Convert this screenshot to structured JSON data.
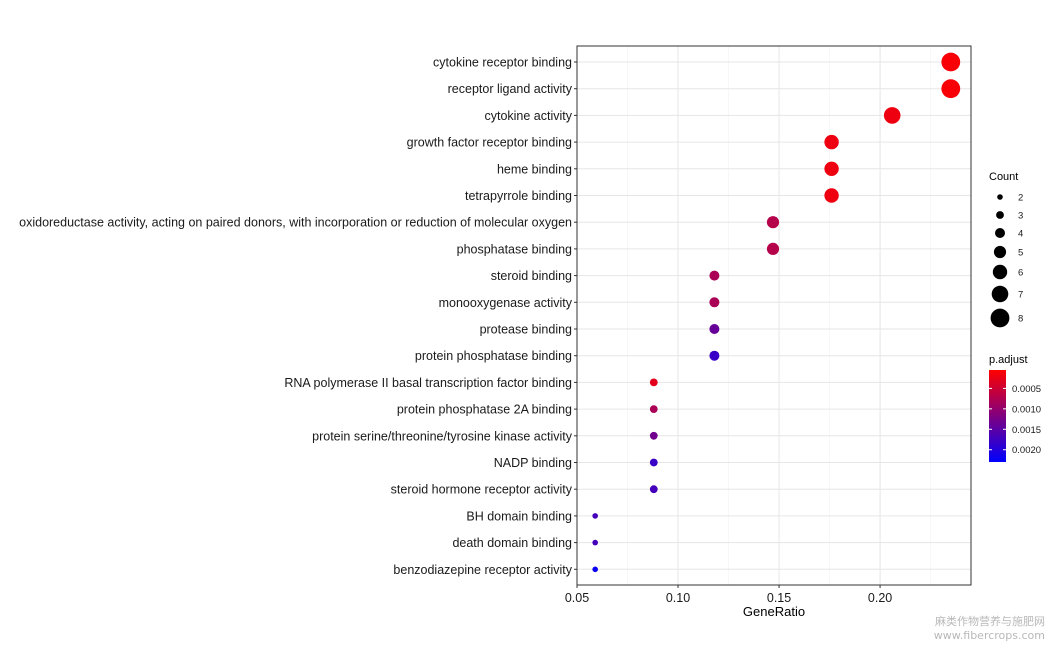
{
  "chart_data": {
    "type": "scatter",
    "title": "",
    "xlabel": "GeneRatio",
    "ylabel": "",
    "xlim": [
      0.05,
      0.245
    ],
    "xticks": [
      "0.05",
      "0.10",
      "0.15",
      "0.20"
    ],
    "grid": true,
    "legend_position": "right",
    "categories": [
      "cytokine receptor binding",
      "receptor ligand activity",
      "cytokine activity",
      "growth factor receptor binding",
      "heme binding",
      "tetrapyrrole binding",
      "oxidoreductase activity, acting on paired donors, with incorporation or reduction of molecular oxygen",
      "phosphatase binding",
      "steroid binding",
      "monooxygenase activity",
      "protease binding",
      "protein phosphatase binding",
      "RNA polymerase II basal transcription factor binding",
      "protein phosphatase 2A binding",
      "protein serine/threonine/tyrosine kinase activity",
      "NADP binding",
      "steroid hormone receptor activity",
      "BH domain binding",
      "death domain binding",
      "benzodiazepine receptor activity"
    ],
    "gene_ratio": [
      0.235,
      0.235,
      0.206,
      0.176,
      0.176,
      0.176,
      0.147,
      0.147,
      0.118,
      0.118,
      0.118,
      0.118,
      0.088,
      0.088,
      0.088,
      0.088,
      0.088,
      0.059,
      0.059,
      0.059
    ],
    "count": [
      8,
      8,
      7,
      6,
      6,
      6,
      5,
      5,
      4,
      4,
      4,
      4,
      3,
      3,
      3,
      3,
      3,
      2,
      2,
      2
    ],
    "p_adjust": [
      0.0001,
      0.0001,
      0.0002,
      0.0002,
      0.0002,
      0.0002,
      0.0007,
      0.0007,
      0.0008,
      0.0008,
      0.0014,
      0.0018,
      0.0003,
      0.0008,
      0.0013,
      0.0018,
      0.0017,
      0.0017,
      0.0017,
      0.0022
    ],
    "legend_count": {
      "title": "Count",
      "values": [
        2,
        3,
        4,
        5,
        6,
        7,
        8
      ],
      "labels": [
        "2",
        "3",
        "4",
        "5",
        "6",
        "7",
        "8"
      ]
    },
    "legend_padjust": {
      "title": "p.adjust",
      "labels": [
        "0.0005",
        "0.0010",
        "0.0015",
        "0.0020"
      ],
      "values": [
        0.0005,
        0.001,
        0.0015,
        0.002
      ],
      "range": [
        5e-05,
        0.0023
      ],
      "color_low": "#ff0000",
      "color_high": "#0000ff"
    }
  },
  "watermark": {
    "line1": "麻类作物营养与施肥网",
    "line2": "www.fibercrops.com"
  }
}
